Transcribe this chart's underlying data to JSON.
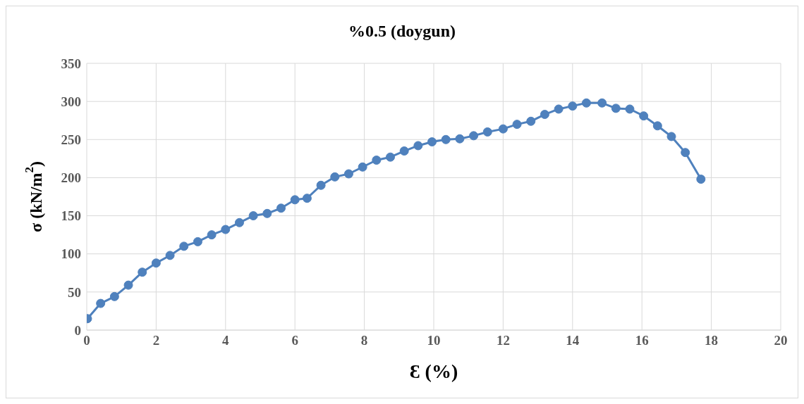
{
  "chart_data": {
    "type": "line",
    "title": "%0.5 (doygun)",
    "xlabel": "Ɛ (%)",
    "ylabel": "σ (kN/m$^{2}$)",
    "x": [
      0.02,
      0.4,
      0.8,
      1.2,
      1.6,
      2.0,
      2.4,
      2.8,
      3.2,
      3.6,
      4.0,
      4.4,
      4.8,
      5.2,
      5.6,
      6.0,
      6.35,
      6.75,
      7.15,
      7.55,
      7.95,
      8.35,
      8.75,
      9.15,
      9.55,
      9.95,
      10.35,
      10.75,
      11.15,
      11.55,
      12.0,
      12.4,
      12.8,
      13.2,
      13.6,
      14.0,
      14.4,
      14.85,
      15.25,
      15.65,
      16.05,
      16.45,
      16.85,
      17.25,
      17.7
    ],
    "series": [
      {
        "color": "#4f81bd",
        "values": [
          15,
          35,
          44,
          59,
          76,
          88,
          98,
          110,
          116,
          125,
          132,
          141,
          150,
          153,
          160,
          171,
          173,
          190,
          201,
          205,
          214,
          223,
          227,
          235,
          242,
          247,
          250,
          251,
          255,
          260,
          264,
          270,
          274,
          283,
          290,
          294,
          298,
          298,
          291,
          290,
          281,
          268,
          254,
          233,
          198
        ]
      }
    ],
    "xlim": [
      0,
      20
    ],
    "xticks": [
      0,
      2,
      4,
      6,
      8,
      10,
      12,
      14,
      16,
      18,
      20
    ],
    "ylim": [
      0,
      350
    ],
    "yticks": [
      0,
      50,
      100,
      150,
      200,
      250,
      300,
      350
    ],
    "grid": true,
    "marker": "circle",
    "line_style": "solid"
  }
}
